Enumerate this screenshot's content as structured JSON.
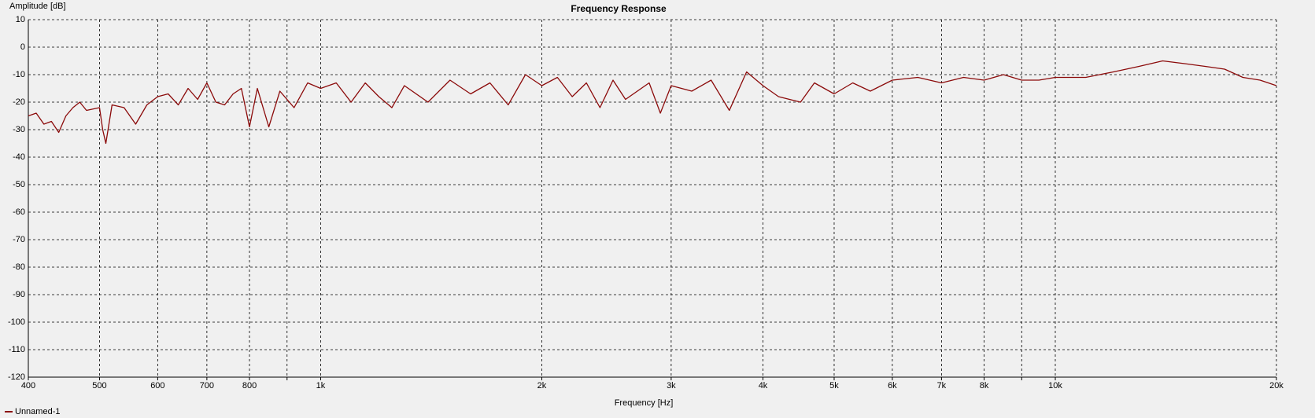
{
  "chart_data": {
    "type": "line",
    "title": "Frequency Response",
    "x_label": "Frequency [Hz]",
    "y_label": "Amplitude [dB]",
    "xscale": "log",
    "grid": true,
    "legend": "bottom-left",
    "xlim": [
      400,
      20000
    ],
    "ylim": [
      -120,
      10
    ],
    "xticks": [
      400,
      500,
      600,
      700,
      800,
      {
        "value": 900,
        "label": null
      },
      {
        "value": 1000,
        "label": "1k"
      },
      {
        "value": 2000,
        "label": "2k"
      },
      {
        "value": 3000,
        "label": "3k"
      },
      {
        "value": 4000,
        "label": "4k"
      },
      {
        "value": 5000,
        "label": "5k"
      },
      {
        "value": 6000,
        "label": "6k"
      },
      {
        "value": 7000,
        "label": "7k"
      },
      {
        "value": 8000,
        "label": "8k"
      },
      {
        "value": 9000,
        "label": null
      },
      {
        "value": 10000,
        "label": "10k"
      },
      {
        "value": 20000,
        "label": "20k"
      }
    ],
    "yticks": [
      10,
      0,
      -10,
      -20,
      -30,
      -40,
      -50,
      -60,
      -70,
      -80,
      -90,
      -100,
      -110,
      -120
    ],
    "x": [
      400,
      410,
      420,
      430,
      440,
      450,
      460,
      470,
      480,
      500,
      505,
      510,
      520,
      540,
      560,
      580,
      600,
      620,
      640,
      660,
      680,
      700,
      720,
      740,
      760,
      780,
      800,
      820,
      850,
      880,
      920,
      960,
      1000,
      1050,
      1100,
      1150,
      1200,
      1250,
      1300,
      1400,
      1500,
      1600,
      1700,
      1800,
      1900,
      2000,
      2100,
      2200,
      2300,
      2400,
      2500,
      2600,
      2800,
      2900,
      3000,
      3200,
      3400,
      3600,
      3800,
      4000,
      4200,
      4500,
      4700,
      5000,
      5300,
      5600,
      6000,
      6500,
      7000,
      7500,
      8000,
      8500,
      9000,
      9500,
      10000,
      11000,
      12000,
      13000,
      14000,
      15000,
      16000,
      17000,
      18000,
      19000,
      20000
    ],
    "series": [
      {
        "name": "Unnamed-1",
        "color": "#8b0a0a",
        "values": [
          -25,
          -24,
          -28,
          -27,
          -31,
          -25,
          -22,
          -20,
          -23,
          -22,
          -30,
          -35,
          -21,
          -22,
          -28,
          -21,
          -18,
          -17,
          -21,
          -15,
          -19,
          -13,
          -20,
          -21,
          -17,
          -15,
          -29,
          -15,
          -29,
          -16,
          -22,
          -13,
          -15,
          -13,
          -20,
          -13,
          -18,
          -22,
          -14,
          -20,
          -12,
          -17,
          -13,
          -21,
          -10,
          -14,
          -11,
          -18,
          -13,
          -22,
          -12,
          -19,
          -13,
          -24,
          -14,
          -16,
          -12,
          -23,
          -9,
          -14,
          -18,
          -20,
          -13,
          -17,
          -13,
          -16,
          -12,
          -11,
          -13,
          -11,
          -12,
          -10,
          -12,
          -12,
          -11,
          -11,
          -9,
          -7,
          -5,
          -6,
          -7,
          -8,
          -11,
          -12,
          -14
        ]
      }
    ]
  }
}
